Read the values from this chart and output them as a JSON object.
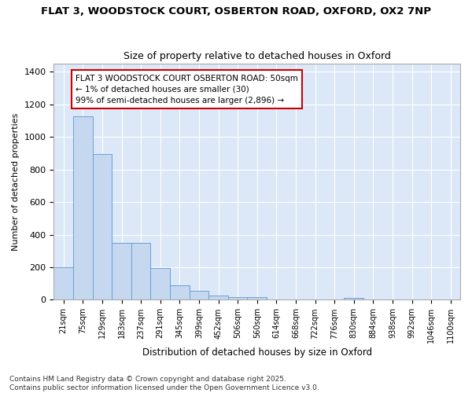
{
  "title_line1": "FLAT 3, WOODSTOCK COURT, OSBERTON ROAD, OXFORD, OX2 7NP",
  "title_line2": "Size of property relative to detached houses in Oxford",
  "xlabel": "Distribution of detached houses by size in Oxford",
  "ylabel": "Number of detached properties",
  "categories": [
    "21sqm",
    "75sqm",
    "129sqm",
    "183sqm",
    "237sqm",
    "291sqm",
    "345sqm",
    "399sqm",
    "452sqm",
    "506sqm",
    "560sqm",
    "614sqm",
    "668sqm",
    "722sqm",
    "776sqm",
    "830sqm",
    "884sqm",
    "938sqm",
    "992sqm",
    "1046sqm",
    "1100sqm"
  ],
  "bar_values": [
    200,
    1125,
    895,
    350,
    350,
    195,
    90,
    55,
    25,
    15,
    15,
    0,
    0,
    0,
    0,
    12,
    0,
    0,
    0,
    0,
    0
  ],
  "bar_color": "#c5d8f0",
  "bar_edge_color": "#6aa0d4",
  "annotation_box_text": "FLAT 3 WOODSTOCK COURT OSBERTON ROAD: 50sqm\n← 1% of detached houses are smaller (30)\n99% of semi-detached houses are larger (2,896) →",
  "annotation_box_edge_color": "#cc0000",
  "ylim": [
    0,
    1450
  ],
  "yticks": [
    0,
    200,
    400,
    600,
    800,
    1000,
    1200,
    1400
  ],
  "plot_bg_color": "#dce8f8",
  "fig_bg_color": "#ffffff",
  "grid_color": "#ffffff",
  "footer_text": "Contains HM Land Registry data © Crown copyright and database right 2025.\nContains public sector information licensed under the Open Government Licence v3.0.",
  "fig_width": 6.0,
  "fig_height": 5.0,
  "dpi": 100
}
